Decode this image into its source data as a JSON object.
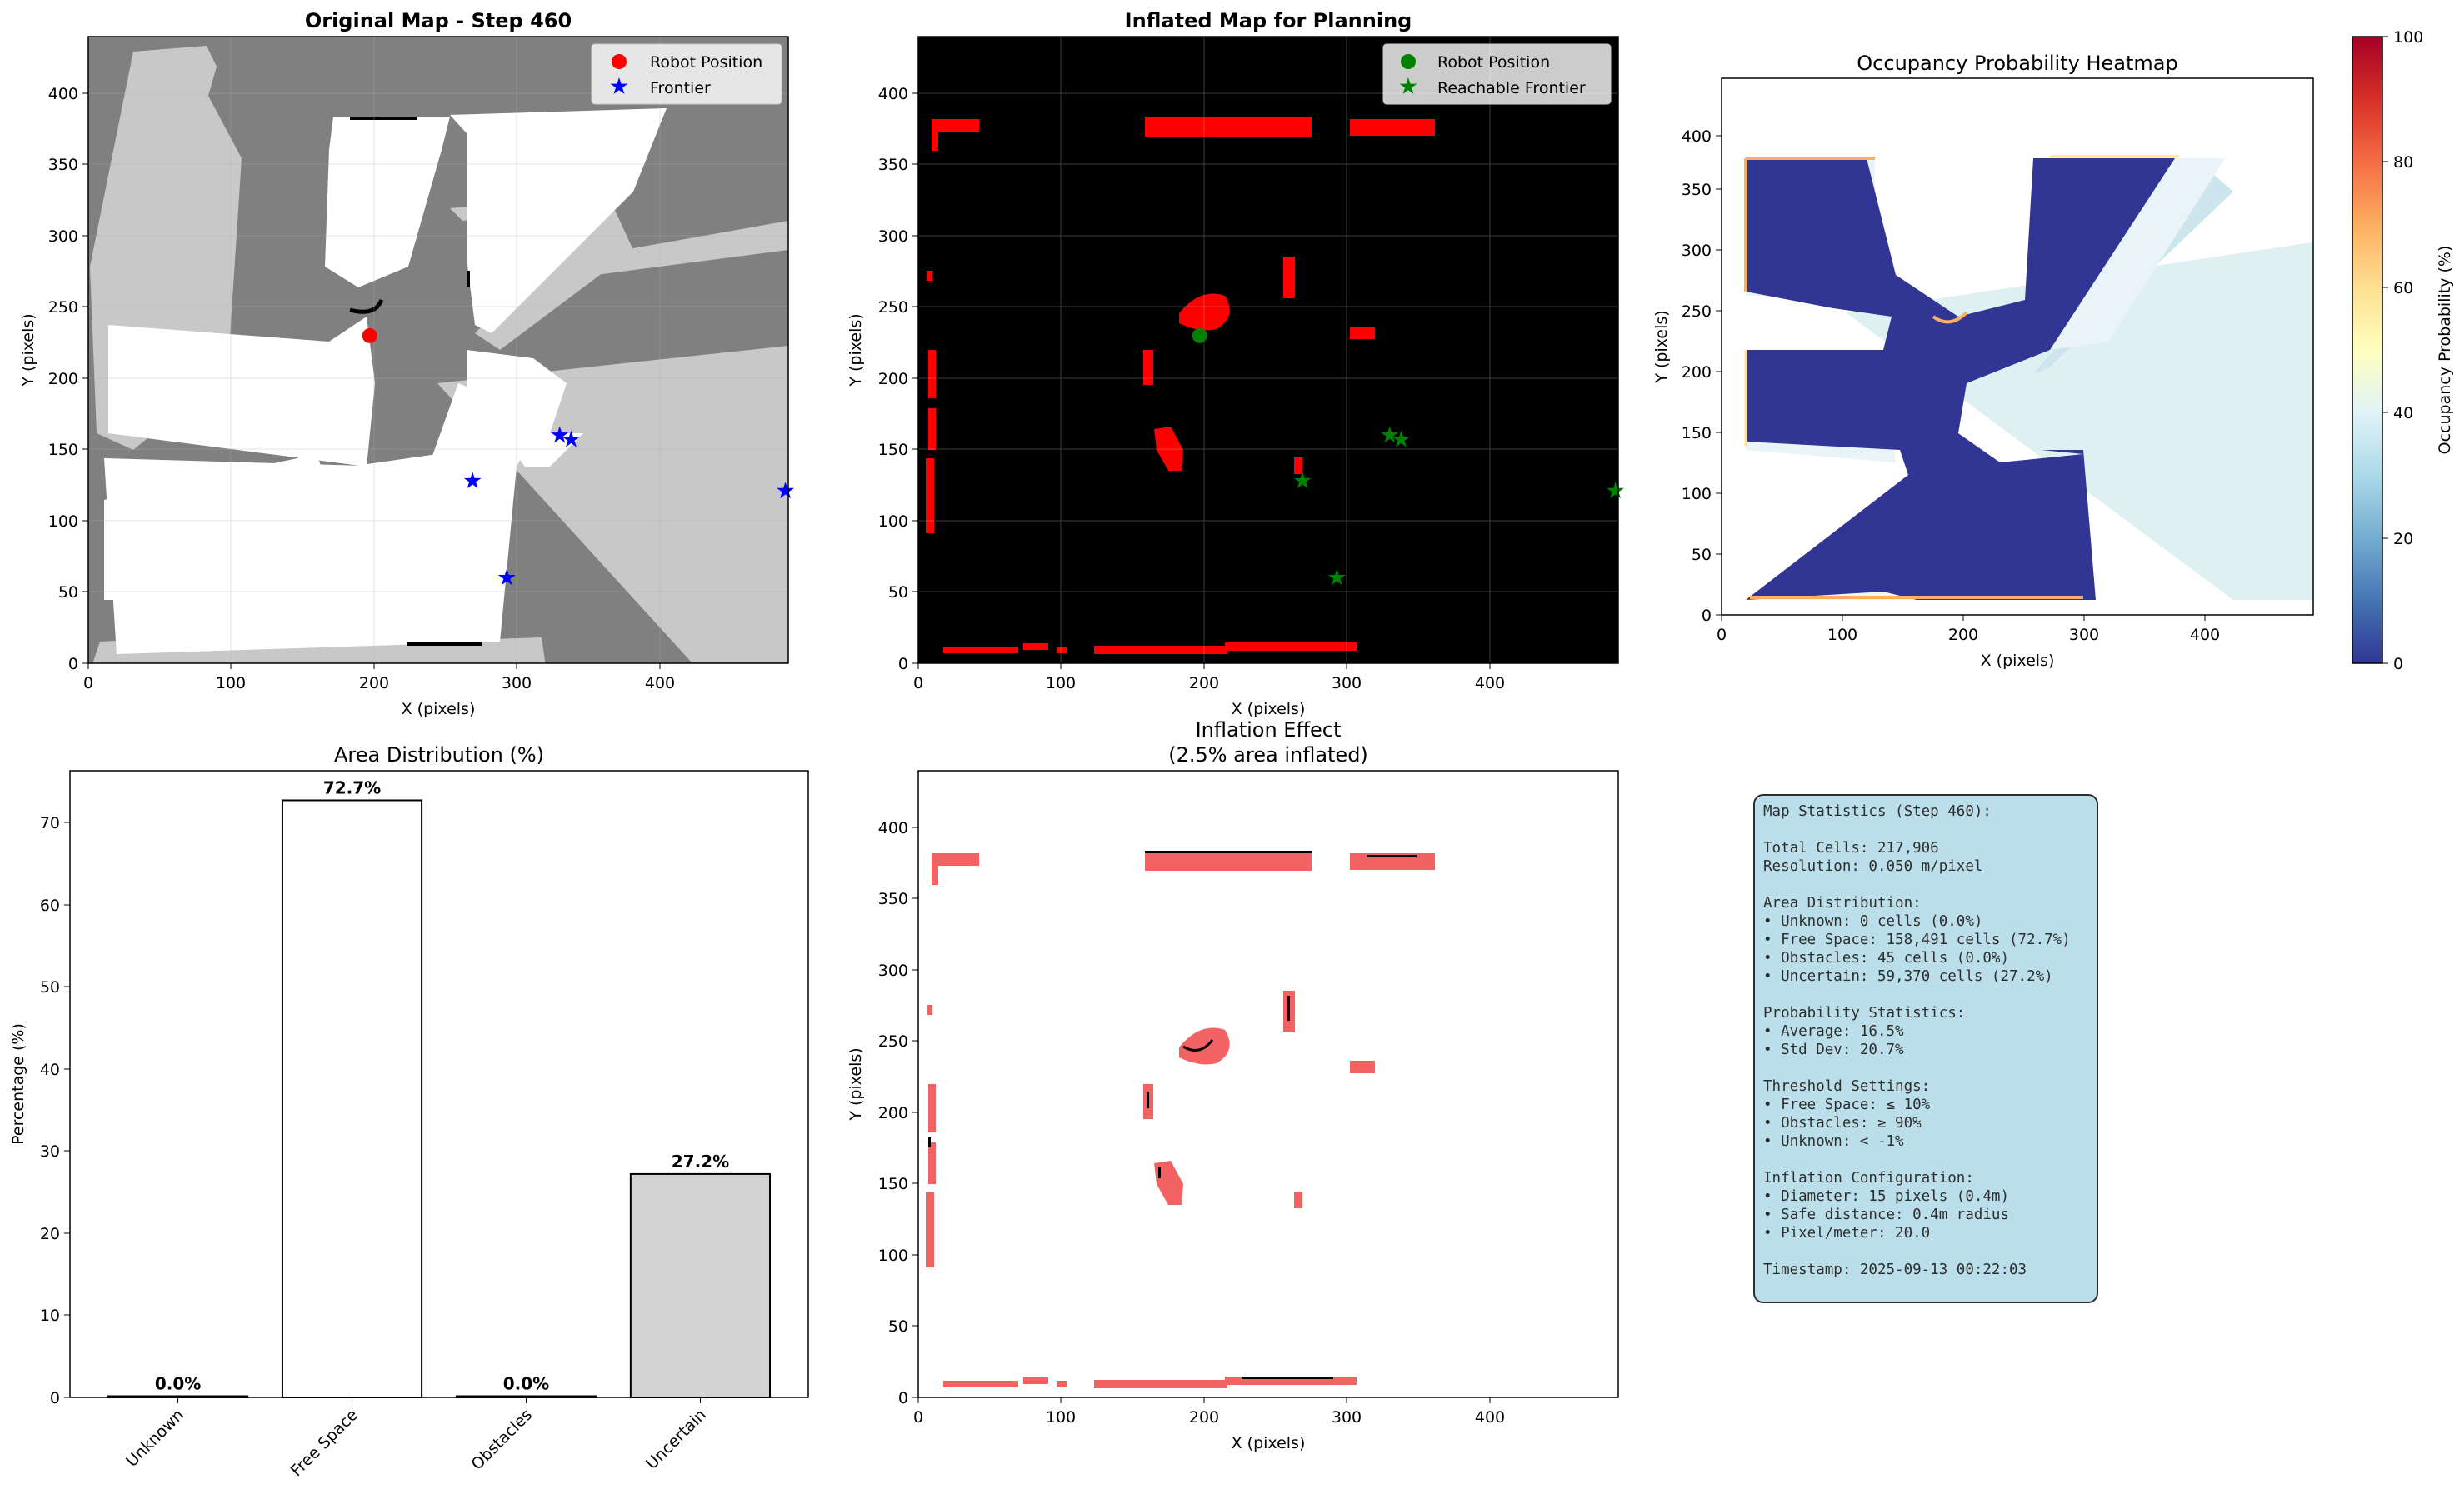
{
  "chart_data": [
    {
      "type": "scatter",
      "title": "Original Map - Step 460",
      "xlabel": "X (pixels)",
      "ylabel": "Y (pixels)",
      "xlim": [
        0,
        490
      ],
      "ylim": [
        0,
        440
      ],
      "xticks": [
        "0",
        "100",
        "200",
        "300",
        "400"
      ],
      "yticks": [
        "0",
        "50",
        "100",
        "150",
        "200",
        "250",
        "300",
        "350",
        "400"
      ],
      "grid": true,
      "legend_position": "top-right",
      "series": [
        {
          "name": "Robot Position",
          "marker": "circle",
          "color": "#ff0000",
          "points": [
            [
              197,
              230
            ]
          ]
        },
        {
          "name": "Frontier",
          "marker": "star",
          "color": "#0000ff",
          "points": [
            [
              269,
              128
            ],
            [
              293,
              60
            ],
            [
              330,
              160
            ],
            [
              338,
              157
            ],
            [
              488,
              121
            ]
          ]
        }
      ]
    },
    {
      "type": "scatter",
      "title": "Inflated Map for Planning",
      "xlabel": "X (pixels)",
      "ylabel": "Y (pixels)",
      "xlim": [
        0,
        490
      ],
      "ylim": [
        0,
        440
      ],
      "xticks": [
        "0",
        "100",
        "200",
        "300",
        "400"
      ],
      "yticks": [
        "0",
        "50",
        "100",
        "150",
        "200",
        "250",
        "300",
        "350",
        "400"
      ],
      "grid": true,
      "background": "#000000",
      "legend_position": "top-right",
      "series": [
        {
          "name": "Robot Position",
          "marker": "circle",
          "color": "#008000",
          "points": [
            [
              197,
              230
            ]
          ]
        },
        {
          "name": "Reachable Frontier",
          "marker": "star",
          "color": "#008000",
          "points": [
            [
              269,
              128
            ],
            [
              293,
              60
            ],
            [
              330,
              160
            ],
            [
              338,
              157
            ],
            [
              488,
              121
            ]
          ]
        }
      ]
    },
    {
      "type": "heatmap",
      "title": "Occupancy Probability Heatmap",
      "xlabel": "X (pixels)",
      "ylabel": "Y (pixels)",
      "xlim": [
        0,
        490
      ],
      "ylim": [
        0,
        440
      ],
      "xticks": [
        "0",
        "100",
        "200",
        "300",
        "400"
      ],
      "yticks": [
        "0",
        "50",
        "100",
        "150",
        "200",
        "250",
        "300",
        "350",
        "400"
      ],
      "colorbar": {
        "label": "Occupancy Probability (%)",
        "range": [
          0,
          100
        ],
        "ticks": [
          "0",
          "20",
          "40",
          "60",
          "80",
          "100"
        ],
        "colormap": "RdYlBu_r"
      }
    },
    {
      "type": "bar",
      "title": "Area Distribution (%)",
      "xlabel": "",
      "ylabel": "Percentage (%)",
      "categories": [
        "Unknown",
        "Free Space",
        "Obstacles",
        "Uncertain"
      ],
      "values": [
        0.0,
        72.7,
        0.0,
        27.2
      ],
      "value_labels": [
        "0.0%",
        "72.7%",
        "0.0%",
        "27.2%"
      ],
      "colors": [
        "#808080",
        "#ffffff",
        "#000000",
        "#d3d3d3"
      ],
      "ylim": [
        0,
        76.3
      ],
      "yticks": [
        "0",
        "10",
        "20",
        "30",
        "40",
        "50",
        "60",
        "70"
      ]
    },
    {
      "type": "heatmap",
      "title": "Inflation Effect",
      "subtitle": "(2.5% area inflated)",
      "xlabel": "X (pixels)",
      "ylabel": "Y (pixels)",
      "xlim": [
        0,
        490
      ],
      "ylim": [
        0,
        440
      ],
      "xticks": [
        "0",
        "100",
        "200",
        "300",
        "400"
      ],
      "yticks": [
        "0",
        "50",
        "100",
        "150",
        "200",
        "250",
        "300",
        "350",
        "400"
      ]
    }
  ],
  "stats_text": "Map Statistics (Step 460):\n\nTotal Cells: 217,906\nResolution: 0.050 m/pixel\n\nArea Distribution:\n• Unknown: 0 cells (0.0%)\n• Free Space: 158,491 cells (72.7%)\n• Obstacles: 45 cells (0.0%)\n• Uncertain: 59,370 cells (27.2%)\n\nProbability Statistics:\n• Average: 16.5%\n• Std Dev: 20.7%\n\nThreshold Settings:\n• Free Space: ≤ 10%\n• Obstacles: ≥ 90%\n• Unknown: < -1%\n\nInflation Configuration:\n• Diameter: 15 pixels (0.4m)\n• Safe distance: 0.4m radius\n• Pixel/meter: 20.0\n\nTimestamp: 2025-09-13 00:22:03"
}
